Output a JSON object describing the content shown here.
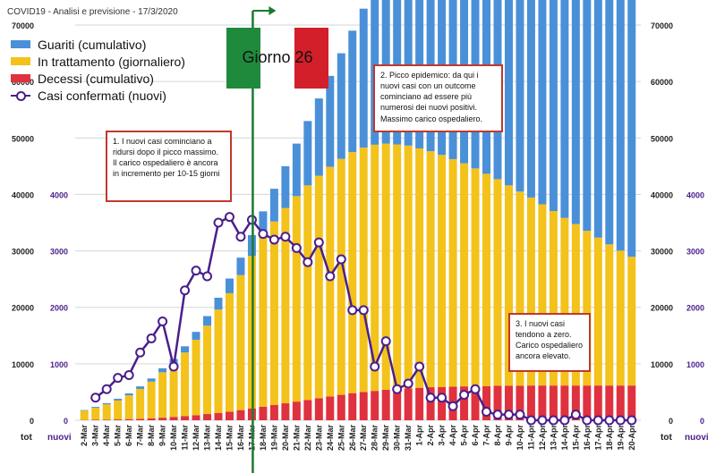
{
  "page_title": "COVID19 - Analisi e previsione - 17/3/2020",
  "legend": [
    {
      "label": "Guariti (cumulativo)",
      "color": "#4a90d9"
    },
    {
      "label": "In trattamento (giornaliero)",
      "color": "#f3c21b"
    },
    {
      "label": "Decessi (cumulativo)",
      "color": "#e0313f"
    },
    {
      "label": "Casi confermati (nuovi)",
      "color": "#4a1f8c"
    }
  ],
  "flag_label": "Giorno 26",
  "notes": [
    {
      "text": "1. I nuovi casi cominciano a ridursi dopo il picco massimo. Il carico ospedaliero è ancora in incremento per 10-15 giorni"
    },
    {
      "text": "2. Picco epidemico: da qui i nuovi casi con un outcome cominciano ad essere più numerosi dei nuovi positivi. Massimo carico ospedaliero."
    },
    {
      "text": "3. I nuovi casi tendono a zero. Carico ospedaliero ancora elevato."
    }
  ],
  "axis_tags": {
    "left_tot": "tot",
    "left_nuovi": "nuovi",
    "right_tot": "tot",
    "right_nuovi": "nuovi"
  },
  "chart_data": {
    "type": "bar",
    "categories": [
      "2-Mar",
      "3-Mar",
      "4-Mar",
      "5-Mar",
      "6-Mar",
      "7-Mar",
      "8-Mar",
      "9-Mar",
      "10-Mar",
      "11-Mar",
      "12-Mar",
      "13-Mar",
      "14-Mar",
      "15-Mar",
      "16-Mar",
      "17-Mar",
      "18-Mar",
      "19-Mar",
      "20-Mar",
      "21-Mar",
      "22-Mar",
      "23-Mar",
      "24-Mar",
      "25-Mar",
      "26-Mar",
      "27-Mar",
      "28-Mar",
      "29-Mar",
      "30-Mar",
      "31-Mar",
      "1-Apr",
      "2-Apr",
      "3-Apr",
      "4-Apr",
      "5-Apr",
      "6-Apr",
      "7-Apr",
      "8-Apr",
      "9-Apr",
      "10-Apr",
      "11-Apr",
      "12-Apr",
      "13-Apr",
      "14-Apr",
      "15-Apr",
      "16-Apr",
      "17-Apr",
      "18-Apr",
      "19-Apr",
      "20-Apr"
    ],
    "series": [
      {
        "name": "Decessi (cumulativo)",
        "axis": "tot",
        "color": "#e0313f",
        "values": [
          50,
          80,
          110,
          150,
          200,
          250,
          350,
          450,
          600,
          750,
          900,
          1100,
          1300,
          1500,
          1800,
          2100,
          2400,
          2700,
          3000,
          3300,
          3600,
          3900,
          4200,
          4500,
          4800,
          5000,
          5200,
          5400,
          5550,
          5650,
          5750,
          5850,
          5900,
          5950,
          6000,
          6000,
          6050,
          6100,
          6100,
          6100,
          6150,
          6150,
          6150,
          6150,
          6150,
          6150,
          6150,
          6150,
          6150,
          6150
        ]
      },
      {
        "name": "In trattamento (giornaliero)",
        "axis": "tot",
        "color": "#f3c21b",
        "values": [
          1650,
          2150,
          2700,
          3350,
          4200,
          5300,
          6500,
          8050,
          9350,
          11250,
          13350,
          15650,
          18300,
          21000,
          23900,
          27000,
          30000,
          32500,
          34600,
          36400,
          38000,
          39400,
          40700,
          41800,
          42700,
          43300,
          43600,
          43600,
          43300,
          43000,
          42400,
          41800,
          41100,
          40300,
          39500,
          38600,
          37600,
          36600,
          35500,
          34400,
          33300,
          32100,
          30900,
          29700,
          28600,
          27400,
          26200,
          25000,
          23900,
          22800
        ]
      },
      {
        "name": "Guariti (cumulativo)",
        "axis": "tot",
        "color": "#4a90d9",
        "values": [
          100,
          150,
          200,
          300,
          350,
          450,
          550,
          700,
          900,
          1100,
          1400,
          1700,
          2100,
          2600,
          3100,
          3700,
          4600,
          5800,
          7400,
          9300,
          11400,
          13700,
          16100,
          18700,
          21500,
          24600,
          27700,
          31000,
          34200,
          37300,
          40300,
          43200,
          45800,
          48100,
          50200,
          52300,
          54100,
          55800,
          57500,
          59000,
          60400,
          61700,
          62900,
          64000,
          65100,
          66200,
          67300,
          68400,
          69500,
          70600
        ]
      },
      {
        "name": "Casi confermati (nuovi)",
        "axis": "nuovi",
        "color": "#4a1f8c",
        "values": [
          null,
          400,
          550,
          750,
          800,
          1200,
          1450,
          1750,
          950,
          2300,
          2650,
          2550,
          3500,
          3600,
          3250,
          3550,
          3300,
          3200,
          3250,
          3050,
          2800,
          3150,
          2550,
          2850,
          1950,
          1950,
          950,
          1400,
          550,
          650,
          950,
          400,
          400,
          250,
          450,
          550,
          150,
          100,
          100,
          100,
          0,
          0,
          0,
          0,
          100,
          0,
          0,
          0,
          0,
          0
        ]
      }
    ],
    "y_tot": {
      "ticks": [
        0,
        10000,
        20000,
        30000,
        40000,
        50000,
        60000,
        70000
      ],
      "ylim": [
        0,
        70000
      ]
    },
    "y_nuovi": {
      "ticks": [
        0,
        1000,
        2000,
        3000,
        4000
      ],
      "ylim": [
        0,
        7000
      ]
    },
    "marker_date": "17-Mar"
  }
}
